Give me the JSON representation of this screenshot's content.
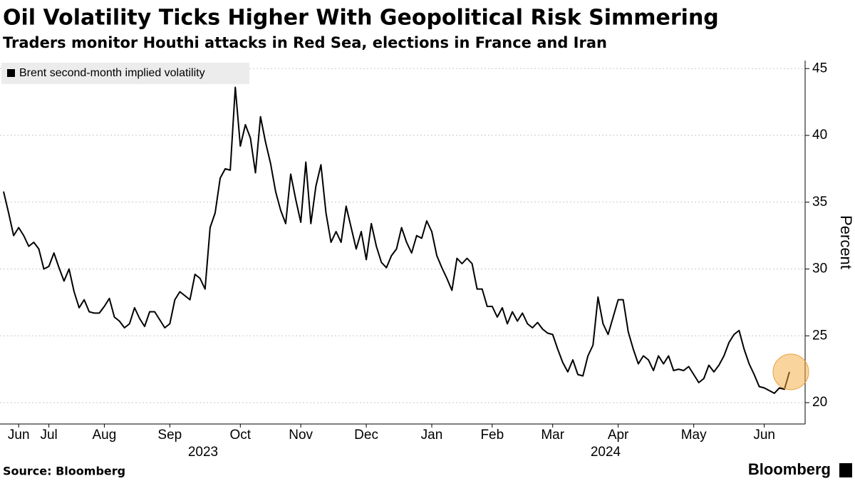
{
  "chart_data": {
    "type": "line",
    "title": "Oil Volatility Ticks Higher With Geopolitical Risk Simmering",
    "subtitle": "Traders monitor Houthi attacks in Red Sea, elections in France and Iran",
    "y_label": "Percent",
    "source": "Source: Bloomberg",
    "brand": "Bloomberg",
    "x_year_labels": [
      "2023",
      "2024"
    ],
    "categories": [
      null,
      null,
      null,
      "Jun",
      null,
      null,
      null,
      null,
      null,
      "Jul",
      null,
      null,
      null,
      null,
      null,
      null,
      null,
      null,
      null,
      null,
      "Aug",
      null,
      null,
      null,
      null,
      null,
      null,
      null,
      null,
      null,
      null,
      null,
      null,
      "Sep",
      null,
      null,
      null,
      null,
      null,
      null,
      null,
      null,
      null,
      null,
      null,
      null,
      null,
      "Oct",
      null,
      null,
      null,
      null,
      null,
      null,
      null,
      null,
      null,
      null,
      null,
      "Nov",
      null,
      null,
      null,
      null,
      null,
      null,
      null,
      null,
      null,
      null,
      null,
      null,
      "Dec",
      null,
      null,
      null,
      null,
      null,
      null,
      null,
      null,
      null,
      null,
      null,
      null,
      "Jan",
      null,
      null,
      null,
      null,
      null,
      null,
      null,
      null,
      null,
      null,
      null,
      "Feb",
      null,
      null,
      null,
      null,
      null,
      null,
      null,
      null,
      null,
      null,
      null,
      "Mar",
      null,
      null,
      null,
      null,
      null,
      null,
      null,
      null,
      null,
      null,
      null,
      null,
      "Apr",
      null,
      null,
      null,
      null,
      null,
      null,
      null,
      null,
      null,
      null,
      null,
      null,
      null,
      null,
      "May",
      null,
      null,
      null,
      null,
      null,
      null,
      null,
      null,
      null,
      null,
      null,
      null,
      null,
      "Jun",
      null,
      null,
      null,
      null,
      null
    ],
    "series": [
      {
        "name": "Brent second-month implied volatility",
        "color": "#000000",
        "values": [
          35.8,
          34.2,
          32.5,
          33.1,
          32.5,
          31.7,
          32,
          31.5,
          30,
          30.2,
          31.2,
          30.1,
          29.1,
          30,
          28.3,
          27.1,
          27.7,
          26.8,
          26.7,
          26.7,
          27.2,
          27.8,
          26.4,
          26.1,
          25.6,
          25.9,
          27.1,
          26.3,
          25.7,
          26.8,
          26.8,
          26.2,
          25.6,
          25.9,
          27.7,
          28.3,
          28,
          27.7,
          29.6,
          29.3,
          28.5,
          33.1,
          34.2,
          36.8,
          37.5,
          37.4,
          43.6,
          39.2,
          40.8,
          39.8,
          37.2,
          41.4,
          39.5,
          37.9,
          35.8,
          34.4,
          33.4,
          37.1,
          35.2,
          33.5,
          38,
          33.4,
          36.2,
          37.8,
          34.2,
          32,
          32.8,
          32,
          34.7,
          33.1,
          31.5,
          32.8,
          30.7,
          33.4,
          31.7,
          30.5,
          30.1,
          31,
          31.5,
          33.1,
          32,
          31.2,
          32.5,
          32.3,
          33.6,
          32.8,
          31,
          30.1,
          29.3,
          28.4,
          30.8,
          30.4,
          30.8,
          30.4,
          28.5,
          28.5,
          27.2,
          27.2,
          26.4,
          27.1,
          25.9,
          26.8,
          26.1,
          26.7,
          25.9,
          25.6,
          26,
          25.5,
          25.2,
          25.1,
          24,
          23,
          22.3,
          23.2,
          22.1,
          22,
          23.5,
          24.3,
          27.9,
          25.9,
          25.1,
          26.4,
          27.7,
          27.7,
          25.3,
          24,
          22.9,
          23.5,
          23.2,
          22.4,
          23.5,
          22.9,
          23.5,
          22.4,
          22.5,
          22.4,
          22.7,
          22.1,
          21.5,
          21.8,
          22.8,
          22.3,
          22.8,
          23.5,
          24.5,
          25.1,
          25.4,
          24,
          22.9,
          22.1,
          21.2,
          21.1,
          20.9,
          20.7,
          21.1,
          21,
          22.3
        ]
      }
    ],
    "ylim": [
      18.4,
      45.6
    ],
    "yticks": [
      20,
      25,
      30,
      35,
      40,
      45
    ],
    "grid": true,
    "legend": "top-left"
  }
}
